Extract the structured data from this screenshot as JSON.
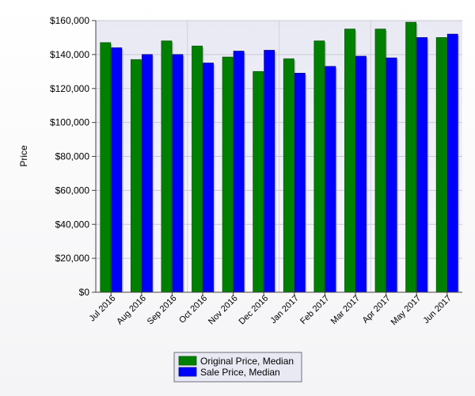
{
  "chart_data": {
    "type": "bar",
    "title": "",
    "xlabel": "",
    "ylabel": "Price",
    "ylim": [
      0,
      160000
    ],
    "yticks": [
      "$0",
      "$20,000",
      "$40,000",
      "$60,000",
      "$80,000",
      "$100,000",
      "$120,000",
      "$140,000",
      "$160,000"
    ],
    "categories": [
      "Jul 2016",
      "Aug 2016",
      "Sep 2016",
      "Oct 2016",
      "Nov 2016",
      "Dec 2016",
      "Jan 2017",
      "Feb 2017",
      "Mar 2017",
      "Apr 2017",
      "May 2017",
      "Jun 2017"
    ],
    "series": [
      {
        "name": "Original Price, Median",
        "color": "#008000",
        "values": [
          147000,
          137000,
          148000,
          145000,
          138500,
          130000,
          137500,
          148000,
          155000,
          155000,
          159000,
          150000
        ]
      },
      {
        "name": "Sale Price, Median",
        "color": "#0000ff",
        "values": [
          144000,
          140000,
          140000,
          135000,
          142000,
          142500,
          129000,
          133000,
          139000,
          138000,
          150000,
          152000
        ]
      }
    ],
    "grid": true,
    "legend": "bottom-center"
  }
}
